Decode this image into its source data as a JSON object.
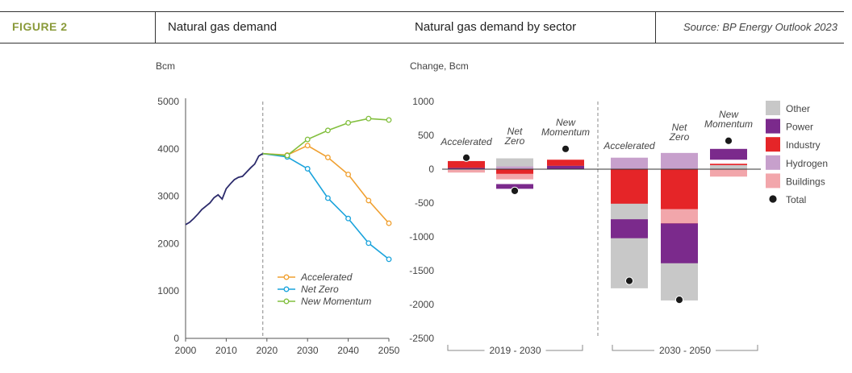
{
  "header": {
    "figure_label": "FIGURE 2",
    "left_title": "Natural gas demand",
    "right_title": "Natural gas demand by sector",
    "source": "Source: BP Energy Outlook 2023"
  },
  "colors": {
    "historical": "#2b2a6b",
    "accelerated": "#f0a030",
    "net_zero": "#1aa3dc",
    "new_momentum": "#82bf3e",
    "other": "#c8c8c8",
    "power": "#7b2a8c",
    "industry": "#e52528",
    "hydrogen": "#c7a0cc",
    "buildings": "#f2a6ab",
    "total": "#1a1a1a"
  },
  "chart_data": [
    {
      "type": "line",
      "ylabel": "Bcm",
      "xlim": [
        2000,
        2050
      ],
      "ylim": [
        0,
        5000
      ],
      "x_ticks": [
        2000,
        2010,
        2020,
        2030,
        2040,
        2050
      ],
      "y_ticks": [
        0,
        1000,
        2000,
        3000,
        4000,
        5000
      ],
      "divider_year": 2019,
      "historical": {
        "x": [
          2000,
          2001,
          2002,
          2003,
          2004,
          2005,
          2006,
          2007,
          2008,
          2009,
          2010,
          2011,
          2012,
          2013,
          2014,
          2015,
          2016,
          2017,
          2018,
          2019
        ],
        "y": [
          2400,
          2450,
          2530,
          2620,
          2720,
          2790,
          2860,
          2970,
          3030,
          2940,
          3160,
          3260,
          3350,
          3400,
          3420,
          3510,
          3600,
          3680,
          3850,
          3900
        ]
      },
      "series": [
        {
          "name": "Accelerated",
          "color_key": "accelerated",
          "x": [
            2019,
            2025,
            2030,
            2035,
            2040,
            2045,
            2050
          ],
          "y": [
            3900,
            3870,
            4070,
            3820,
            3460,
            2910,
            2430
          ]
        },
        {
          "name": "Net Zero",
          "color_key": "net_zero",
          "x": [
            2019,
            2025,
            2030,
            2035,
            2040,
            2045,
            2050
          ],
          "y": [
            3900,
            3830,
            3580,
            2960,
            2530,
            2010,
            1670
          ]
        },
        {
          "name": "New Momentum",
          "color_key": "new_momentum",
          "x": [
            2019,
            2025,
            2030,
            2035,
            2040,
            2045,
            2050
          ],
          "y": [
            3900,
            3860,
            4200,
            4390,
            4550,
            4640,
            4610
          ]
        }
      ],
      "legend": {
        "position": "bottom-right",
        "items": [
          "Accelerated",
          "Net Zero",
          "New Momentum"
        ]
      }
    },
    {
      "type": "bar",
      "stacked": true,
      "ylabel": "Change, Bcm",
      "ylim": [
        -2500,
        1000
      ],
      "y_ticks": [
        1000,
        500,
        0,
        -500,
        -1000,
        -1500,
        -2000,
        -2500
      ],
      "categories": [
        "Accelerated",
        "Net Zero",
        "New Momentum",
        "Accelerated",
        "Net Zero",
        "New Momentum"
      ],
      "category_labels": [
        "Accelerated",
        "Net\nZero",
        "New\nMomentum",
        "Accelerated",
        "Net\nZero",
        "New\nMomentum"
      ],
      "groups": [
        {
          "label": "2019 - 2030",
          "indices": [
            0,
            1,
            2
          ]
        },
        {
          "label": "2030 - 2050",
          "indices": [
            3,
            4,
            5
          ]
        }
      ],
      "series": [
        {
          "name": "Other",
          "color_key": "other",
          "values": [
            [
              0,
              0,
              90
            ],
            [
              0,
              0,
              160
            ],
            [
              0,
              0,
              120
            ],
            [
              0,
              -1760,
              -70
            ],
            [
              0,
              -1940,
              -240
            ],
            [
              0,
              0,
              60
            ]
          ]
        },
        {
          "name": "Power",
          "color_key": "power",
          "values": [
            [
              0,
              0,
              20
            ],
            [
              0,
              -220,
              -290
            ],
            [
              0,
              0,
              50
            ],
            [
              0,
              -1020,
              -740
            ],
            [
              0,
              -1390,
              -550
            ],
            [
              0,
              140,
              300
            ]
          ]
        },
        {
          "name": "Industry",
          "color_key": "industry",
          "values": [
            [
              0,
              20,
              120
            ],
            [
              0,
              0,
              -70
            ],
            [
              0,
              50,
              140
            ],
            [
              0,
              0,
              -510
            ],
            [
              0,
              0,
              -800
            ],
            [
              0,
              80,
              60
            ]
          ]
        },
        {
          "name": "Hydrogen",
          "color_key": "hydrogen",
          "values": [
            [
              0,
              0,
              0
            ],
            [
              0,
              0,
              40
            ],
            [
              0,
              0,
              0
            ],
            [
              0,
              0,
              170
            ],
            [
              0,
              0,
              240
            ],
            [
              0,
              0,
              0
            ]
          ]
        },
        {
          "name": "Buildings",
          "color_key": "buildings",
          "values": [
            [
              0,
              -10,
              -50
            ],
            [
              0,
              -70,
              -150
            ],
            [
              0,
              0,
              0
            ],
            [
              0,
              -510,
              -510
            ],
            [
              0,
              -800,
              -590
            ],
            [
              0,
              0,
              -110
            ]
          ]
        }
      ],
      "totals": [
        170,
        -320,
        300,
        -1650,
        -1930,
        420
      ],
      "legend": {
        "position": "right",
        "items": [
          "Other",
          "Power",
          "Industry",
          "Hydrogen",
          "Buildings",
          "Total"
        ]
      }
    }
  ]
}
